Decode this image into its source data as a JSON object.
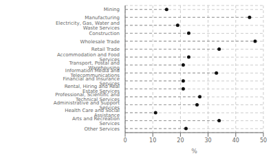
{
  "chart_data": {
    "type": "dot",
    "categories": [
      "Mining",
      "Manufacturing",
      "Electricity, Gas, Water and Waste Services",
      "Construction",
      "Wholesale Trade",
      "Retail Trade",
      "Accommodation and Food Services",
      "Transport, Postal and Warehousing",
      "Information Media and Telecommunications",
      "Financial and Insurance Services",
      "Rental, Hiring and Real Estate Services",
      "Professional, Scientific and Technical Services",
      "Administrative and Support Services",
      "Health Care and Social Assistance",
      "Arts and Recreation Services",
      "Other Services"
    ],
    "values": [
      15,
      45,
      19,
      23,
      47,
      34,
      23,
      21,
      33,
      21,
      21,
      27,
      26,
      11,
      34,
      22
    ],
    "color": "#111111",
    "xlabel": "%",
    "xlim": [
      0,
      50
    ],
    "xticks": [
      0,
      10,
      20,
      30,
      40,
      50
    ],
    "orientation": "horizontal",
    "grid": true,
    "marker": "circle",
    "line_style": "dashed"
  }
}
